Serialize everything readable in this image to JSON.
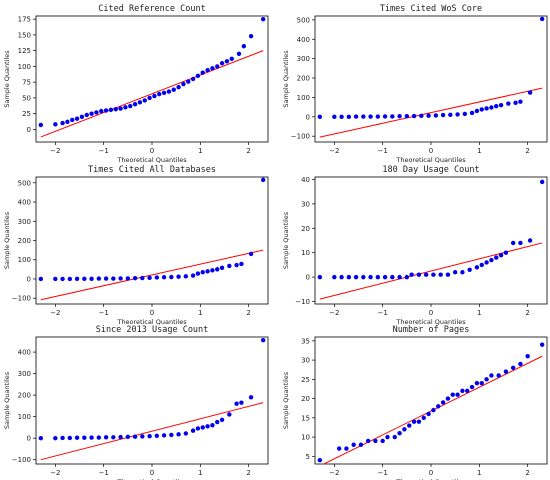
{
  "figure": {
    "colors": {
      "points": "#0000ee",
      "line": "#ff0000",
      "frame": "#000000"
    }
  },
  "chart_data": [
    {
      "type": "scatter",
      "title": "Cited Reference Count",
      "xlabel": "Theoretical Quantiles",
      "ylabel": "Sample Quantiles",
      "xlim": [
        -2.4,
        2.4
      ],
      "ylim": [
        -20,
        180
      ],
      "xticks": [
        -2,
        -1,
        0,
        1,
        2
      ],
      "yticks": [
        0,
        25,
        50,
        75,
        100,
        125,
        150,
        175
      ],
      "reference_line": {
        "x": [
          -2.3,
          2.3
        ],
        "y": [
          -12,
          125
        ]
      },
      "series": [
        {
          "points": [
            [
              -2.3,
              7
            ],
            [
              -2.0,
              8
            ],
            [
              -1.85,
              10
            ],
            [
              -1.75,
              12
            ],
            [
              -1.65,
              15
            ],
            [
              -1.55,
              17
            ],
            [
              -1.45,
              20
            ],
            [
              -1.35,
              23
            ],
            [
              -1.25,
              25
            ],
            [
              -1.15,
              27
            ],
            [
              -1.05,
              29
            ],
            [
              -0.95,
              30
            ],
            [
              -0.85,
              31
            ],
            [
              -0.75,
              32
            ],
            [
              -0.65,
              33
            ],
            [
              -0.55,
              35
            ],
            [
              -0.45,
              37
            ],
            [
              -0.35,
              40
            ],
            [
              -0.25,
              43
            ],
            [
              -0.15,
              46
            ],
            [
              -0.05,
              50
            ],
            [
              0.05,
              53
            ],
            [
              0.15,
              56
            ],
            [
              0.25,
              58
            ],
            [
              0.35,
              60
            ],
            [
              0.45,
              63
            ],
            [
              0.55,
              67
            ],
            [
              0.65,
              72
            ],
            [
              0.75,
              76
            ],
            [
              0.85,
              80
            ],
            [
              0.95,
              85
            ],
            [
              1.05,
              90
            ],
            [
              1.15,
              94
            ],
            [
              1.25,
              97
            ],
            [
              1.35,
              100
            ],
            [
              1.45,
              105
            ],
            [
              1.55,
              108
            ],
            [
              1.65,
              112
            ],
            [
              1.8,
              120
            ],
            [
              1.9,
              132
            ],
            [
              2.05,
              148
            ],
            [
              2.3,
              175
            ]
          ]
        }
      ]
    },
    {
      "type": "scatter",
      "title": "Times Cited WoS Core",
      "xlabel": "Theoretical Quantiles",
      "ylabel": "Sample Quantiles",
      "xlim": [
        -2.4,
        2.4
      ],
      "ylim": [
        -130,
        520
      ],
      "xticks": [
        -2,
        -1,
        0,
        1,
        2
      ],
      "yticks": [
        -100,
        0,
        100,
        200,
        300,
        400,
        500
      ],
      "reference_line": {
        "x": [
          -2.3,
          2.3
        ],
        "y": [
          -105,
          148
        ]
      },
      "series": [
        {
          "points": [
            [
              -2.3,
              0
            ],
            [
              -2.0,
              0
            ],
            [
              -1.85,
              0
            ],
            [
              -1.7,
              0
            ],
            [
              -1.55,
              1
            ],
            [
              -1.4,
              1
            ],
            [
              -1.25,
              1
            ],
            [
              -1.1,
              1
            ],
            [
              -0.95,
              2
            ],
            [
              -0.8,
              2
            ],
            [
              -0.65,
              3
            ],
            [
              -0.5,
              3
            ],
            [
              -0.35,
              4
            ],
            [
              -0.2,
              5
            ],
            [
              -0.05,
              6
            ],
            [
              0.1,
              7
            ],
            [
              0.25,
              9
            ],
            [
              0.4,
              10
            ],
            [
              0.55,
              12
            ],
            [
              0.7,
              15
            ],
            [
              0.85,
              20
            ],
            [
              0.95,
              30
            ],
            [
              1.05,
              38
            ],
            [
              1.15,
              43
            ],
            [
              1.25,
              48
            ],
            [
              1.35,
              55
            ],
            [
              1.45,
              60
            ],
            [
              1.6,
              68
            ],
            [
              1.75,
              72
            ],
            [
              1.85,
              78
            ],
            [
              2.05,
              125
            ],
            [
              2.3,
              505
            ]
          ]
        }
      ]
    },
    {
      "type": "scatter",
      "title": "Times Cited All Databases",
      "xlabel": "Theoretical Quantiles",
      "ylabel": "Sample Quantiles",
      "xlim": [
        -2.4,
        2.4
      ],
      "ylim": [
        -130,
        530
      ],
      "xticks": [
        -2,
        -1,
        0,
        1,
        2
      ],
      "yticks": [
        -100,
        0,
        100,
        200,
        300,
        400,
        500
      ],
      "reference_line": {
        "x": [
          -2.3,
          2.3
        ],
        "y": [
          -108,
          150
        ]
      },
      "series": [
        {
          "points": [
            [
              -2.3,
              0
            ],
            [
              -2.0,
              0
            ],
            [
              -1.85,
              0
            ],
            [
              -1.7,
              0
            ],
            [
              -1.55,
              1
            ],
            [
              -1.4,
              1
            ],
            [
              -1.25,
              1
            ],
            [
              -1.1,
              2
            ],
            [
              -0.95,
              2
            ],
            [
              -0.8,
              2
            ],
            [
              -0.65,
              3
            ],
            [
              -0.5,
              3
            ],
            [
              -0.35,
              4
            ],
            [
              -0.2,
              5
            ],
            [
              -0.05,
              6
            ],
            [
              0.1,
              8
            ],
            [
              0.25,
              9
            ],
            [
              0.4,
              10
            ],
            [
              0.55,
              12
            ],
            [
              0.7,
              14
            ],
            [
              0.85,
              18
            ],
            [
              0.95,
              28
            ],
            [
              1.05,
              35
            ],
            [
              1.15,
              40
            ],
            [
              1.25,
              45
            ],
            [
              1.35,
              50
            ],
            [
              1.45,
              58
            ],
            [
              1.6,
              68
            ],
            [
              1.75,
              72
            ],
            [
              1.85,
              78
            ],
            [
              2.05,
              130
            ],
            [
              2.3,
              515
            ]
          ]
        }
      ]
    },
    {
      "type": "scatter",
      "title": "180 Day Usage Count",
      "xlabel": "Theoretical Quantiles",
      "ylabel": "Sample Quantiles",
      "xlim": [
        -2.4,
        2.4
      ],
      "ylim": [
        -11,
        41
      ],
      "xticks": [
        -2,
        -1,
        0,
        1,
        2
      ],
      "yticks": [
        -10,
        0,
        10,
        20,
        30,
        40
      ],
      "reference_line": {
        "x": [
          -2.3,
          2.3
        ],
        "y": [
          -9,
          14
        ]
      },
      "series": [
        {
          "points": [
            [
              -2.3,
              0
            ],
            [
              -2.0,
              0
            ],
            [
              -1.85,
              0
            ],
            [
              -1.7,
              0
            ],
            [
              -1.55,
              0
            ],
            [
              -1.4,
              0
            ],
            [
              -1.25,
              0
            ],
            [
              -1.1,
              0
            ],
            [
              -0.95,
              0
            ],
            [
              -0.8,
              0
            ],
            [
              -0.65,
              0
            ],
            [
              -0.5,
              0
            ],
            [
              -0.4,
              1
            ],
            [
              -0.25,
              1
            ],
            [
              -0.1,
              1
            ],
            [
              0.05,
              1
            ],
            [
              0.2,
              1
            ],
            [
              0.35,
              1
            ],
            [
              0.5,
              2
            ],
            [
              0.65,
              2
            ],
            [
              0.8,
              3
            ],
            [
              0.95,
              4
            ],
            [
              1.05,
              5
            ],
            [
              1.15,
              6
            ],
            [
              1.25,
              7
            ],
            [
              1.35,
              8
            ],
            [
              1.45,
              9
            ],
            [
              1.55,
              10
            ],
            [
              1.7,
              14
            ],
            [
              1.85,
              14
            ],
            [
              2.05,
              15
            ],
            [
              2.3,
              39
            ]
          ]
        }
      ]
    },
    {
      "type": "scatter",
      "title": "Since 2013 Usage Count",
      "xlabel": "Theoretical Quantiles",
      "ylabel": "Sample Quantiles",
      "xlim": [
        -2.4,
        2.4
      ],
      "ylim": [
        -120,
        470
      ],
      "xticks": [
        -2,
        -1,
        0,
        1,
        2
      ],
      "yticks": [
        -100,
        0,
        100,
        200,
        300,
        400
      ],
      "reference_line": {
        "x": [
          -2.3,
          2.3
        ],
        "y": [
          -100,
          165
        ]
      },
      "series": [
        {
          "points": [
            [
              -2.3,
              0
            ],
            [
              -2.0,
              0
            ],
            [
              -1.85,
              1
            ],
            [
              -1.7,
              1
            ],
            [
              -1.55,
              2
            ],
            [
              -1.4,
              2
            ],
            [
              -1.25,
              3
            ],
            [
              -1.1,
              3
            ],
            [
              -0.95,
              4
            ],
            [
              -0.8,
              4
            ],
            [
              -0.65,
              5
            ],
            [
              -0.5,
              6
            ],
            [
              -0.35,
              7
            ],
            [
              -0.2,
              8
            ],
            [
              -0.05,
              9
            ],
            [
              0.1,
              11
            ],
            [
              0.25,
              13
            ],
            [
              0.4,
              15
            ],
            [
              0.55,
              18
            ],
            [
              0.7,
              22
            ],
            [
              0.85,
              35
            ],
            [
              0.95,
              45
            ],
            [
              1.05,
              50
            ],
            [
              1.15,
              55
            ],
            [
              1.25,
              60
            ],
            [
              1.35,
              75
            ],
            [
              1.45,
              85
            ],
            [
              1.6,
              110
            ],
            [
              1.75,
              160
            ],
            [
              1.85,
              165
            ],
            [
              2.05,
              190
            ],
            [
              2.3,
              455
            ]
          ]
        }
      ]
    },
    {
      "type": "scatter",
      "title": "Number of Pages",
      "xlabel": "Theoretical Quantiles",
      "ylabel": "Sample Quantiles",
      "xlim": [
        -2.4,
        2.4
      ],
      "ylim": [
        3,
        36
      ],
      "xticks": [
        -2,
        -1,
        0,
        1,
        2
      ],
      "yticks": [
        5,
        10,
        15,
        20,
        25,
        30,
        35
      ],
      "reference_line": {
        "x": [
          -2.3,
          2.3
        ],
        "y": [
          2.5,
          31
        ]
      },
      "series": [
        {
          "points": [
            [
              -2.3,
              4
            ],
            [
              -1.9,
              7
            ],
            [
              -1.75,
              7
            ],
            [
              -1.6,
              8
            ],
            [
              -1.45,
              8
            ],
            [
              -1.3,
              9
            ],
            [
              -1.15,
              9
            ],
            [
              -1.0,
              9
            ],
            [
              -0.9,
              10
            ],
            [
              -0.75,
              10
            ],
            [
              -0.65,
              11
            ],
            [
              -0.55,
              12
            ],
            [
              -0.45,
              13
            ],
            [
              -0.35,
              14
            ],
            [
              -0.25,
              14
            ],
            [
              -0.15,
              15
            ],
            [
              -0.05,
              16
            ],
            [
              0.05,
              17
            ],
            [
              0.15,
              18
            ],
            [
              0.25,
              19
            ],
            [
              0.35,
              20
            ],
            [
              0.45,
              21
            ],
            [
              0.55,
              21
            ],
            [
              0.65,
              22
            ],
            [
              0.75,
              22
            ],
            [
              0.85,
              23
            ],
            [
              0.95,
              24
            ],
            [
              1.05,
              24
            ],
            [
              1.15,
              25
            ],
            [
              1.25,
              26
            ],
            [
              1.4,
              26
            ],
            [
              1.55,
              27
            ],
            [
              1.7,
              28
            ],
            [
              1.85,
              29
            ],
            [
              2.0,
              31
            ],
            [
              2.3,
              34
            ]
          ]
        }
      ]
    }
  ]
}
